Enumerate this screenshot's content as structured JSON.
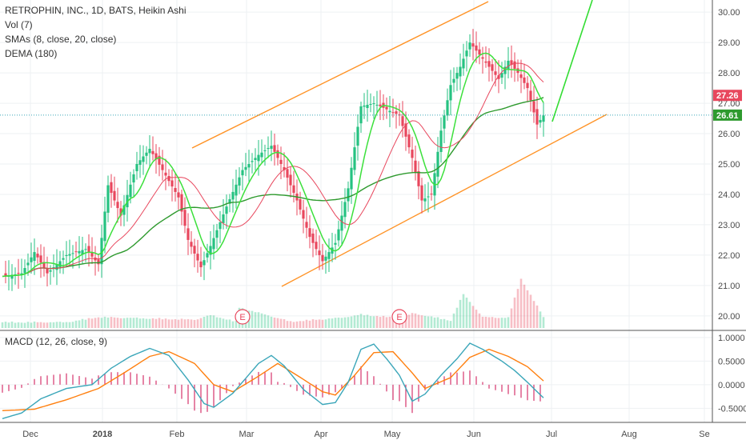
{
  "legend": {
    "title": "RETROPHIN, INC., 1D, BATS, Heikin Ashi",
    "vol": "Vol (7)",
    "sma": "SMAs (8, close, 20, close)",
    "dema": "DEMA (180)",
    "macd": "MACD (12, 26, close, 9)"
  },
  "colors": {
    "up": "#26c281",
    "down": "#e8475d",
    "sma_fast": "#3ce03c",
    "sma_slow": "#e8475d",
    "dema": "#2e9a2e",
    "channel": "#ff9326",
    "projection": "#33dd33",
    "macd_line": "#3aa6b9",
    "signal_line": "#ff7f0e",
    "hist": "#d6336c",
    "last_price": "#3aa6b9",
    "earnings": "#e8475d"
  },
  "chart_data": [
    {
      "type": "candlestick",
      "name": "price",
      "ylim": [
        19.6,
        30.4
      ],
      "yticks": [
        "30.00",
        "29.00",
        "28.00",
        "27.00",
        "26.00",
        "25.00",
        "24.00",
        "23.00",
        "22.00",
        "21.00",
        "20.00"
      ],
      "xticks": [
        "Dec",
        "2018",
        "Feb",
        "Mar",
        "Apr",
        "May",
        "Jun",
        "Jul",
        "Aug",
        "Se"
      ],
      "last_price_labels": [
        "27.26",
        "26.61"
      ],
      "earnings_markers": [
        "E",
        "E"
      ],
      "keypoints": [
        [
          0,
          21.3
        ],
        [
          6,
          21.4
        ],
        [
          10,
          22.1
        ],
        [
          14,
          21.4
        ],
        [
          20,
          22.0
        ],
        [
          26,
          22.2
        ],
        [
          30,
          21.7
        ],
        [
          33,
          24.3
        ],
        [
          37,
          23.3
        ],
        [
          42,
          25.0
        ],
        [
          46,
          25.5
        ],
        [
          50,
          24.8
        ],
        [
          55,
          23.9
        ],
        [
          58,
          22.5
        ],
        [
          62,
          21.6
        ],
        [
          65,
          22.3
        ],
        [
          70,
          23.6
        ],
        [
          75,
          24.8
        ],
        [
          80,
          25.3
        ],
        [
          84,
          25.6
        ],
        [
          88,
          24.8
        ],
        [
          92,
          23.8
        ],
        [
          96,
          22.6
        ],
        [
          100,
          21.8
        ],
        [
          104,
          22.4
        ],
        [
          108,
          24.2
        ],
        [
          112,
          26.9
        ],
        [
          116,
          27.0
        ],
        [
          120,
          26.8
        ],
        [
          124,
          26.6
        ],
        [
          128,
          25.2
        ],
        [
          131,
          23.8
        ],
        [
          134,
          24.0
        ],
        [
          137,
          26.1
        ],
        [
          140,
          27.6
        ],
        [
          143,
          28.2
        ],
        [
          146,
          29.0
        ],
        [
          149,
          28.6
        ],
        [
          152,
          28.2
        ],
        [
          155,
          27.8
        ],
        [
          158,
          28.4
        ],
        [
          161,
          28.0
        ],
        [
          164,
          27.5
        ],
        [
          167,
          26.3
        ],
        [
          169,
          26.6
        ]
      ],
      "volume_keypoints": [
        [
          0,
          0.8
        ],
        [
          20,
          0.8
        ],
        [
          30,
          1.6
        ],
        [
          60,
          1.2
        ],
        [
          65,
          1.9
        ],
        [
          73,
          0.9
        ],
        [
          74,
          3.1
        ],
        [
          90,
          0.9
        ],
        [
          106,
          1.5
        ],
        [
          112,
          2.0
        ],
        [
          125,
          1.4
        ],
        [
          128,
          2.2
        ],
        [
          140,
          1.1
        ],
        [
          144,
          5.2
        ],
        [
          150,
          1.6
        ],
        [
          158,
          1.5
        ],
        [
          162,
          7.6
        ],
        [
          169,
          1.6
        ]
      ]
    },
    {
      "type": "line",
      "name": "MACD (12, 26, close, 9)",
      "ylim": [
        -0.8,
        1.1
      ],
      "yticks": [
        "1.0000",
        "0.5000",
        "0.0000",
        "-0.5000"
      ],
      "macd_keypoints": [
        [
          0,
          -0.72
        ],
        [
          6,
          -0.6
        ],
        [
          12,
          -0.3
        ],
        [
          20,
          -0.08
        ],
        [
          28,
          0.0
        ],
        [
          34,
          0.35
        ],
        [
          40,
          0.6
        ],
        [
          46,
          0.77
        ],
        [
          52,
          0.62
        ],
        [
          58,
          0.1
        ],
        [
          63,
          -0.4
        ],
        [
          66,
          -0.48
        ],
        [
          72,
          -0.18
        ],
        [
          80,
          0.45
        ],
        [
          84,
          0.62
        ],
        [
          88,
          0.4
        ],
        [
          94,
          -0.1
        ],
        [
          100,
          -0.42
        ],
        [
          104,
          -0.38
        ],
        [
          108,
          0.05
        ],
        [
          112,
          0.75
        ],
        [
          116,
          0.86
        ],
        [
          120,
          0.55
        ],
        [
          124,
          0.2
        ],
        [
          128,
          -0.35
        ],
        [
          132,
          -0.2
        ],
        [
          137,
          0.2
        ],
        [
          142,
          0.55
        ],
        [
          146,
          0.88
        ],
        [
          150,
          0.75
        ],
        [
          156,
          0.5
        ],
        [
          160,
          0.3
        ],
        [
          164,
          0.05
        ],
        [
          169,
          -0.28
        ]
      ],
      "signal_keypoints": [
        [
          0,
          -0.55
        ],
        [
          10,
          -0.52
        ],
        [
          20,
          -0.32
        ],
        [
          30,
          -0.08
        ],
        [
          38,
          0.25
        ],
        [
          46,
          0.6
        ],
        [
          52,
          0.7
        ],
        [
          60,
          0.45
        ],
        [
          66,
          0.0
        ],
        [
          72,
          -0.15
        ],
        [
          80,
          0.18
        ],
        [
          86,
          0.45
        ],
        [
          92,
          0.2
        ],
        [
          100,
          -0.15
        ],
        [
          104,
          -0.22
        ],
        [
          110,
          0.2
        ],
        [
          116,
          0.68
        ],
        [
          122,
          0.7
        ],
        [
          128,
          0.25
        ],
        [
          132,
          -0.08
        ],
        [
          140,
          0.15
        ],
        [
          146,
          0.58
        ],
        [
          152,
          0.75
        ],
        [
          158,
          0.6
        ],
        [
          164,
          0.38
        ],
        [
          169,
          0.08
        ]
      ]
    }
  ]
}
